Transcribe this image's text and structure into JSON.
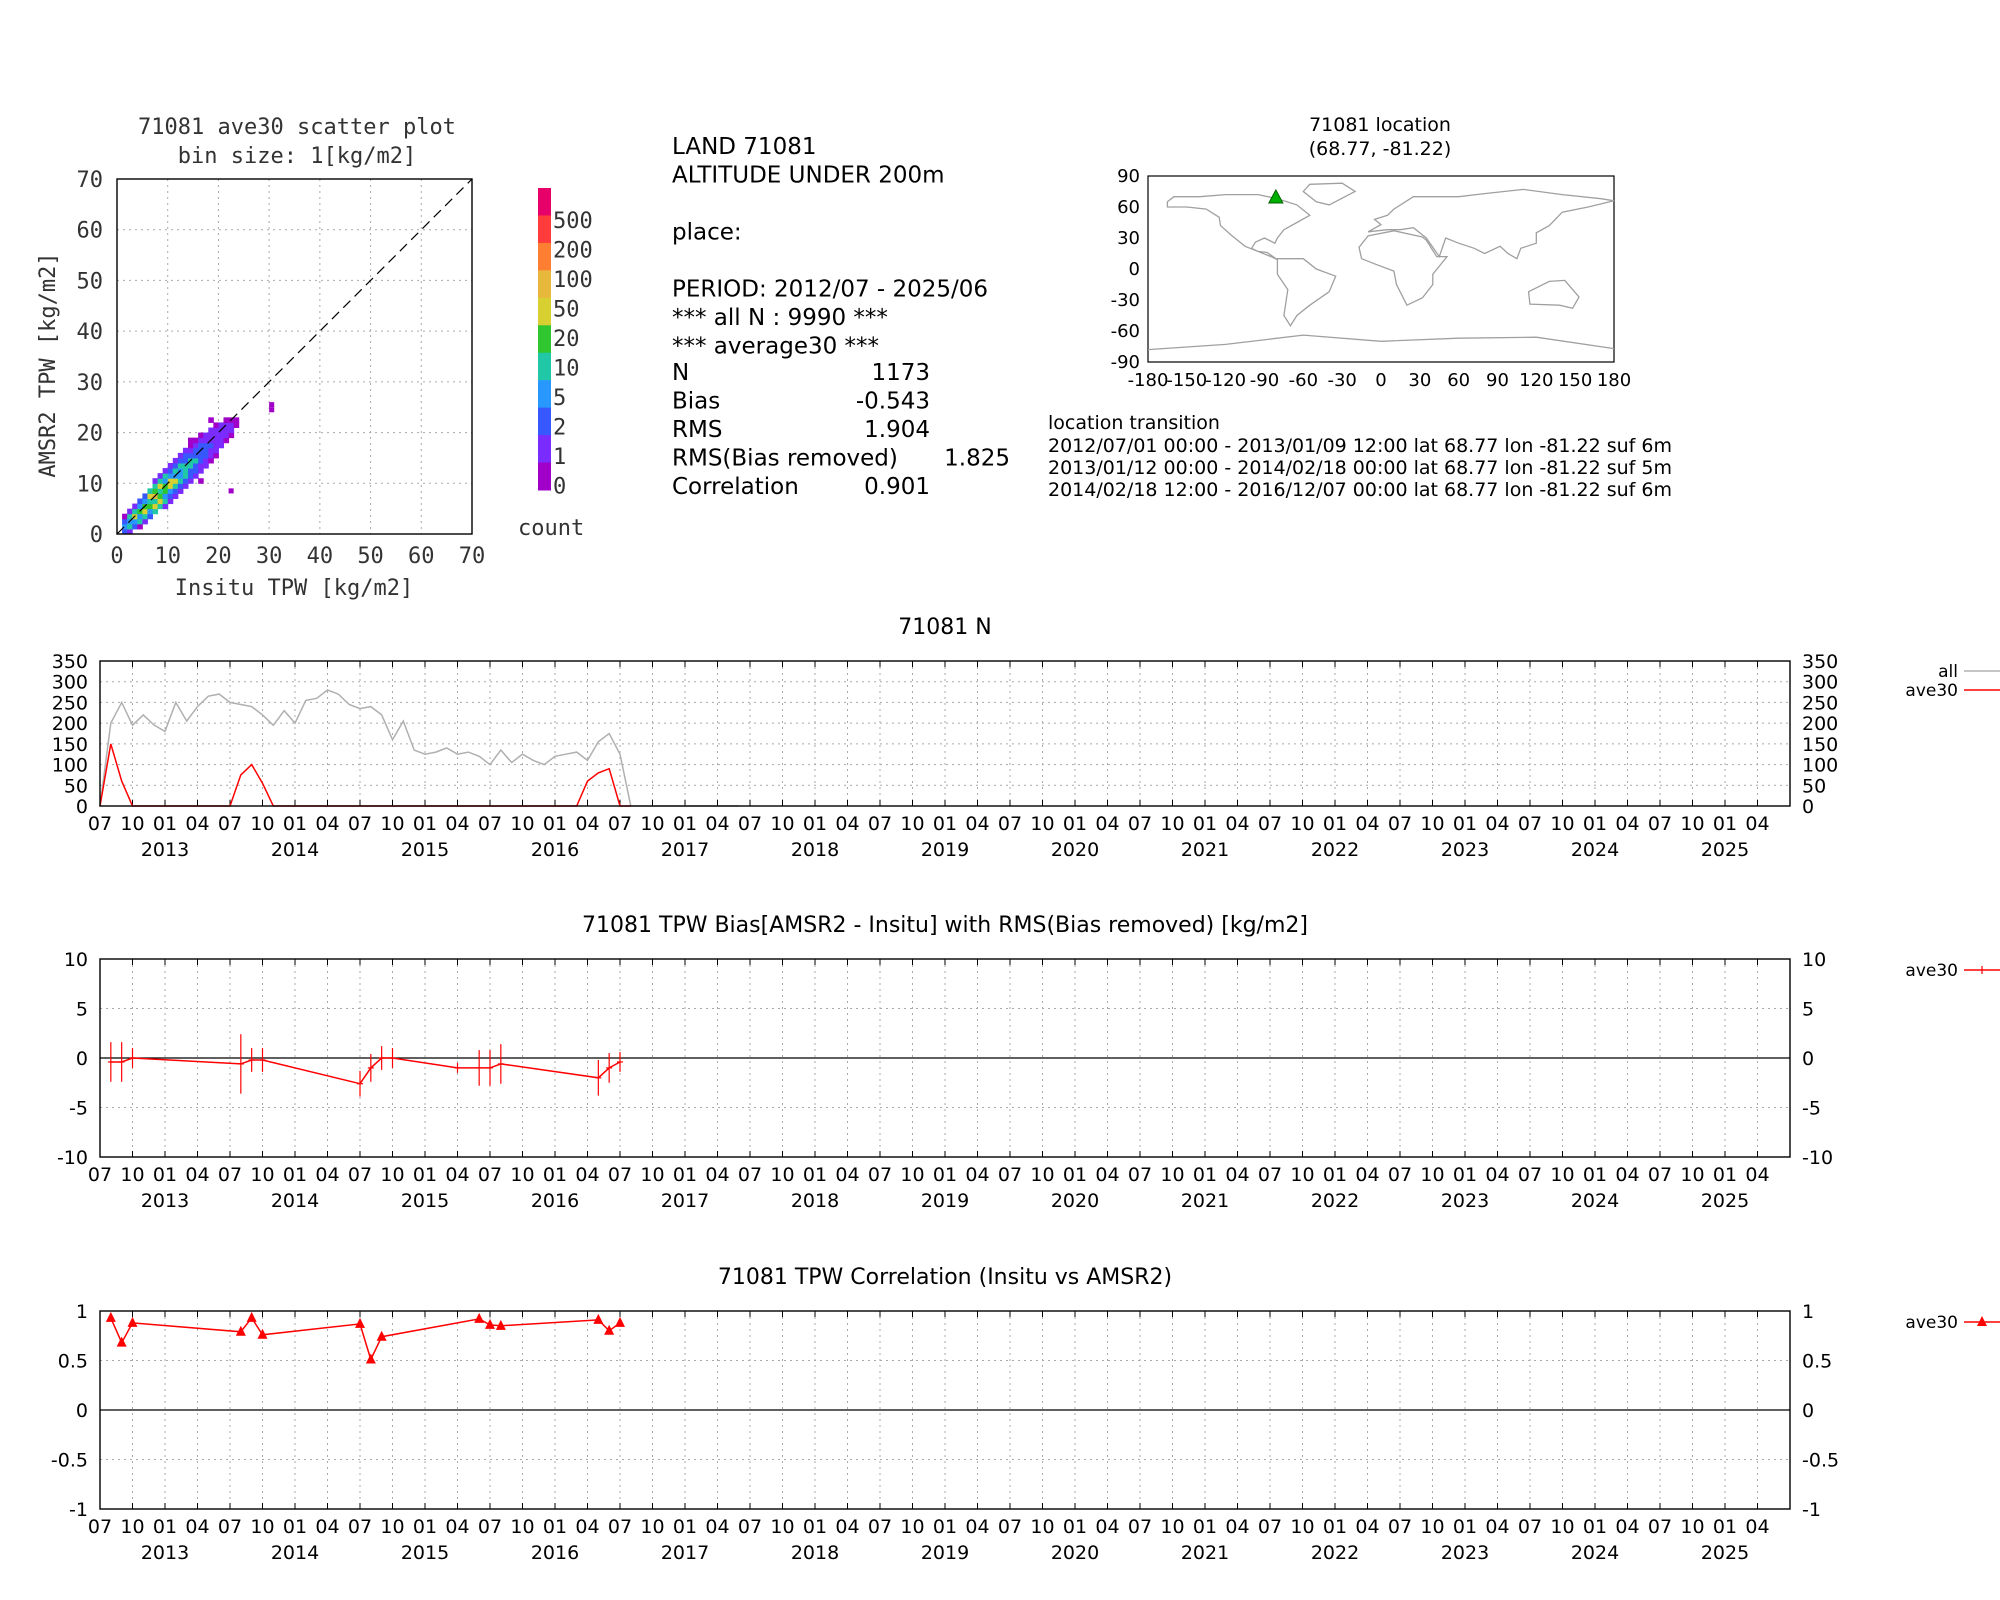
{
  "colors": {
    "series_all": "#b0b0b0",
    "series_ave30": "#ff0000",
    "map_marker": "#00b000",
    "coast": "#a0a0a0"
  },
  "scatter": {
    "title_line1": "71081 ave30 scatter plot",
    "title_line2": "bin size: 1[kg/m2]",
    "xlabel": "Insitu TPW [kg/m2]",
    "ylabel": "AMSR2 TPW [kg/m2]",
    "ticks": [
      "0",
      "10",
      "20",
      "30",
      "40",
      "50",
      "60",
      "70"
    ],
    "colorbar_labels": [
      "500",
      "200",
      "100",
      "50",
      "20",
      "10",
      "5",
      "2",
      "1",
      "0"
    ],
    "colorbar_colors": [
      "#e8006a",
      "#ff3b3b",
      "#ff7f32",
      "#e8b83c",
      "#d8d030",
      "#2fc62f",
      "#20c8a8",
      "#2898ff",
      "#3858ff",
      "#7a2cff",
      "#a000c8"
    ],
    "colorbar_title": "count"
  },
  "info": {
    "lines": [
      "LAND 71081",
      "ALTITUDE UNDER 200m",
      "",
      "place:",
      "",
      "PERIOD: 2012/07 - 2025/06",
      "*** all N :     9990 ***",
      "*** average30 ***"
    ],
    "stats": [
      {
        "label": "N",
        "value": "1173"
      },
      {
        "label": "Bias",
        "value": "-0.543"
      },
      {
        "label": "RMS",
        "value": "1.904"
      },
      {
        "label": "RMS(Bias removed)",
        "value": "1.825"
      },
      {
        "label": "Correlation",
        "value": "0.901"
      }
    ]
  },
  "location": {
    "title_line1": "71081 location",
    "title_line2": "(68.77, -81.22)",
    "lat": 68.77,
    "lon": -81.22,
    "yticks": [
      "90",
      "60",
      "30",
      "0",
      "-30",
      "-60",
      "-90"
    ],
    "xticks": [
      "-180",
      "-150",
      "-120",
      "-90",
      "-60",
      "-30",
      "0",
      "30",
      "60",
      "90",
      "120",
      "150",
      "180"
    ],
    "transition_title": "location transition",
    "transitions": [
      "2012/07/01 00:00 - 2013/01/09 12:00 lat 68.77 lon -81.22 suf 6m",
      "2013/01/12 00:00 - 2014/02/18 00:00 lat 68.77 lon -81.22 suf 5m",
      "2014/02/18 12:00 - 2016/12/07 00:00 lat 68.77 lon -81.22 suf 6m"
    ]
  },
  "time_axis": {
    "month_labels": [
      "07",
      "10",
      "01",
      "04"
    ],
    "year_labels": [
      "2013",
      "2014",
      "2015",
      "2016",
      "2017",
      "2018",
      "2019",
      "2020",
      "2021",
      "2022",
      "2023",
      "2024",
      "2025"
    ]
  },
  "chart_data": [
    {
      "type": "line",
      "title": "71081 N",
      "ylim": [
        0,
        350
      ],
      "yticks": [
        "350",
        "300",
        "250",
        "200",
        "150",
        "100",
        "50",
        "0"
      ],
      "legend": [
        "all",
        "ave30"
      ],
      "series": [
        {
          "name": "all",
          "x_months": [
            0,
            1,
            2,
            3,
            4,
            5,
            6,
            7,
            8,
            9,
            10,
            11,
            12,
            13,
            14,
            15,
            16,
            17,
            18,
            19,
            20,
            21,
            22,
            23,
            24,
            25,
            26,
            27,
            28,
            29,
            30,
            31,
            32,
            33,
            34,
            35,
            36,
            37,
            38,
            39,
            40,
            41,
            42,
            43,
            44,
            45,
            46,
            47,
            48,
            49,
            50,
            51,
            52,
            53,
            54,
            55,
            56,
            57,
            58,
            59
          ],
          "values": [
            0,
            200,
            250,
            195,
            220,
            195,
            180,
            250,
            205,
            240,
            265,
            270,
            250,
            245,
            240,
            220,
            195,
            230,
            200,
            255,
            260,
            280,
            270,
            245,
            235,
            240,
            220,
            160,
            205,
            135,
            125,
            130,
            140,
            125,
            130,
            120,
            100,
            135,
            105,
            125,
            110,
            100,
            120,
            125,
            130,
            110,
            155,
            175,
            125,
            0,
            0,
            0,
            0,
            0,
            0,
            0,
            0,
            0,
            0,
            0
          ]
        },
        {
          "name": "ave30",
          "x_months": [
            0,
            1,
            2,
            3,
            4,
            5,
            6,
            7,
            8,
            9,
            10,
            11,
            12,
            13,
            14,
            15,
            16,
            17,
            18,
            19,
            20,
            21,
            22,
            23,
            24,
            25,
            26,
            27,
            28,
            29,
            30,
            31,
            32,
            33,
            34,
            35,
            36,
            37,
            38,
            39,
            40,
            41,
            42,
            43,
            44,
            45,
            46,
            47,
            48,
            49
          ],
          "values": [
            0,
            150,
            60,
            0,
            0,
            0,
            0,
            0,
            0,
            0,
            0,
            0,
            0,
            75,
            100,
            55,
            0,
            0,
            0,
            0,
            0,
            0,
            0,
            0,
            0,
            0,
            0,
            0,
            0,
            0,
            0,
            0,
            0,
            0,
            0,
            0,
            0,
            0,
            0,
            0,
            0,
            0,
            0,
            0,
            0,
            60,
            80,
            90,
            0,
            0
          ]
        }
      ]
    },
    {
      "type": "line",
      "title": "71081 TPW Bias[AMSR2 - Insitu] with RMS(Bias removed) [kg/m2]",
      "ylim": [
        -10,
        10
      ],
      "yticks": [
        "10",
        "5",
        "0",
        "-5",
        "-10"
      ],
      "legend": [
        "ave30"
      ],
      "series": [
        {
          "name": "ave30",
          "x_months": [
            1,
            2,
            3,
            13,
            14,
            15,
            24,
            25,
            26,
            27,
            33,
            35,
            36,
            37,
            46,
            47,
            48
          ],
          "values": [
            -0.4,
            -0.4,
            0.0,
            -0.6,
            -0.2,
            -0.2,
            -2.6,
            -1.0,
            0.0,
            0.0,
            -1.0,
            -1.0,
            -1.0,
            -0.6,
            -2.0,
            -1.0,
            -0.4
          ],
          "err": [
            2.0,
            2.0,
            1.0,
            3.0,
            1.2,
            1.2,
            1.3,
            1.4,
            1.2,
            1.0,
            0.5,
            1.8,
            1.8,
            2.0,
            1.8,
            1.5,
            1.0
          ]
        }
      ]
    },
    {
      "type": "line",
      "title": "71081 TPW Correlation (Insitu vs AMSR2)",
      "ylim": [
        -1,
        1
      ],
      "yticks": [
        "1",
        "0.5",
        "0",
        "-0.5",
        "-1"
      ],
      "legend": [
        "ave30"
      ],
      "series": [
        {
          "name": "ave30",
          "x_months": [
            1,
            2,
            3,
            13,
            14,
            15,
            24,
            25,
            26,
            35,
            36,
            37,
            46,
            47,
            48
          ],
          "values": [
            0.93,
            0.68,
            0.88,
            0.79,
            0.93,
            0.76,
            0.87,
            0.51,
            0.74,
            0.92,
            0.86,
            0.85,
            0.91,
            0.8,
            0.88
          ]
        }
      ]
    }
  ]
}
